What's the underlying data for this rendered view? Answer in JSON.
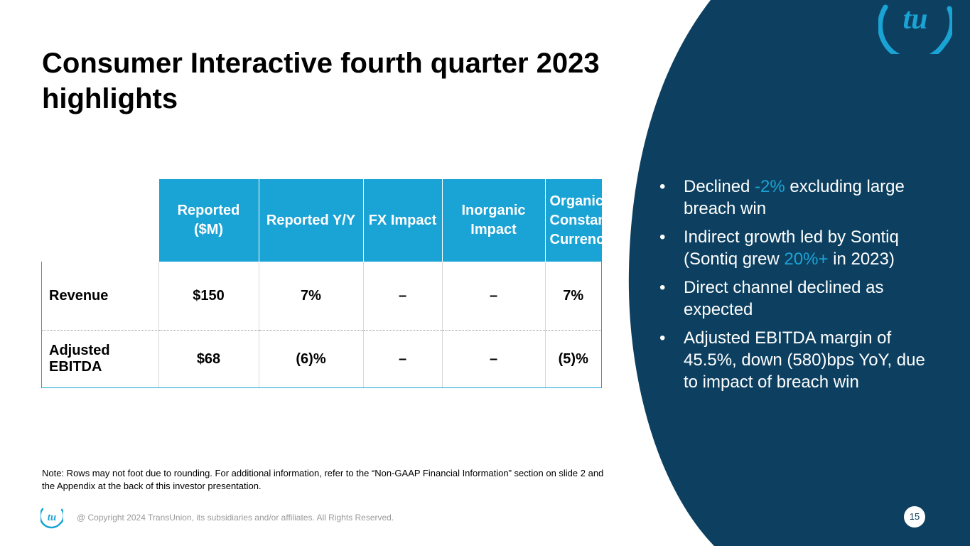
{
  "title": "Consumer Interactive fourth quarter 2023 highlights",
  "colors": {
    "navy": "#0d4060",
    "accent": "#1aa3d5"
  },
  "table": {
    "headers": [
      "Reported ($M)",
      "Reported Y/Y",
      "FX Impact",
      "Inorganic Impact",
      "Organic Constant Currency"
    ],
    "rows": [
      {
        "label": "Revenue",
        "cells": [
          "$150",
          "7%",
          "–",
          "–",
          "7%"
        ]
      },
      {
        "label": "Adjusted EBITDA",
        "cells": [
          "$68",
          "(6)%",
          "–",
          "–",
          "(5)%"
        ]
      }
    ]
  },
  "bullets": [
    {
      "pre": "Declined ",
      "hl": "-2%",
      "post": " excluding large breach win"
    },
    {
      "pre": "Indirect growth led by Sontiq (Sontiq grew ",
      "hl": "20%+",
      "post": " in 2023)"
    },
    {
      "pre": "Direct channel declined as expected",
      "hl": "",
      "post": ""
    },
    {
      "pre": "Adjusted EBITDA margin of 45.5%, down (580)bps YoY, due to impact of breach win",
      "hl": "",
      "post": ""
    }
  ],
  "bullet_symbol": "•",
  "note": "Note: Rows may not foot due to rounding. For additional information, refer to the “Non-GAAP Financial Information” section on slide 2 and the Appendix at the back of this investor presentation.",
  "footer": {
    "copyright": "@ Copyright 2024 TransUnion, its subsidiaries and/or affiliates.  All Rights Reserved.",
    "page_number": "15",
    "logo_text": "tu"
  },
  "icons": {
    "brand_logo": "transunion-logo-icon"
  }
}
